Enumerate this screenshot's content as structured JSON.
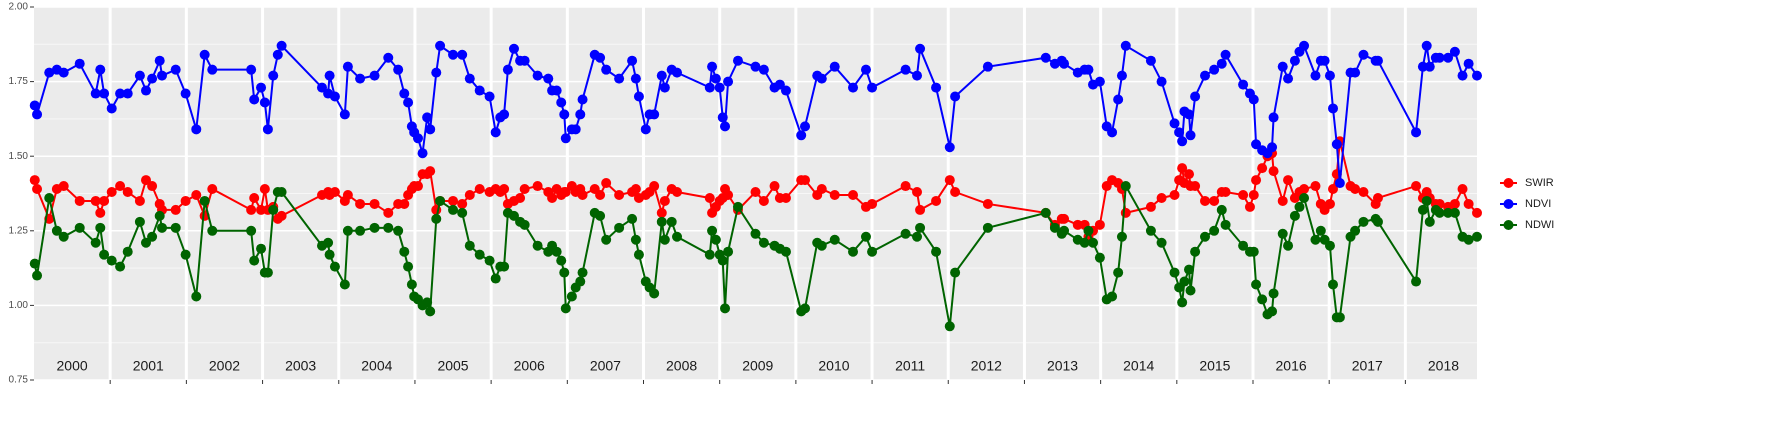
{
  "chart_data": {
    "type": "line",
    "x": [
      2000.01,
      2000.04,
      2000.2,
      2000.3,
      2000.39,
      2000.6,
      2000.81,
      2000.87,
      2000.92,
      2001.02,
      2001.13,
      2001.23,
      2001.39,
      2001.47,
      2001.55,
      2001.65,
      2001.68,
      2001.86,
      2001.99,
      2002.13,
      2002.24,
      2002.34,
      2002.85,
      2002.89,
      2002.98,
      2003.03,
      2003.07,
      2003.14,
      2003.2,
      2003.25,
      2003.78,
      2003.86,
      2003.88,
      2003.95,
      2004.08,
      2004.12,
      2004.28,
      2004.47,
      2004.65,
      2004.78,
      2004.86,
      2004.91,
      2004.96,
      2004.99,
      2005.04,
      2005.1,
      2005.16,
      2005.2,
      2005.28,
      2005.33,
      2005.5,
      2005.62,
      2005.72,
      2005.85,
      2005.98,
      2006.06,
      2006.12,
      2006.17,
      2006.22,
      2006.3,
      2006.38,
      2006.44,
      2006.61,
      2006.75,
      2006.8,
      2006.86,
      2006.92,
      2006.96,
      2006.98,
      2007.06,
      2007.11,
      2007.17,
      2007.2,
      2007.36,
      2007.43,
      2007.51,
      2007.68,
      2007.85,
      2007.9,
      2007.94,
      2008.03,
      2008.08,
      2008.14,
      2008.24,
      2008.28,
      2008.37,
      2008.44,
      2008.87,
      2008.9,
      2008.95,
      2009,
      2009.04,
      2009.07,
      2009.11,
      2009.24,
      2009.47,
      2009.58,
      2009.72,
      2009.79,
      2009.87,
      2010.07,
      2010.12,
      2010.28,
      2010.34,
      2010.51,
      2010.75,
      2010.92,
      2011,
      2011.44,
      2011.59,
      2011.63,
      2011.84,
      2012.02,
      2012.09,
      2012.52,
      2013.28,
      2013.4,
      2013.49,
      2013.52,
      2013.7,
      2013.79,
      2013.84,
      2013.9,
      2013.99,
      2014.08,
      2014.15,
      2014.23,
      2014.28,
      2014.33,
      2014.66,
      2014.8,
      2014.97,
      2015.03,
      2015.07,
      2015.1,
      2015.16,
      2015.18,
      2015.24,
      2015.37,
      2015.49,
      2015.59,
      2015.64,
      2015.87,
      2015.96,
      2016.01,
      2016.04,
      2016.12,
      2016.19,
      2016.25,
      2016.27,
      2016.39,
      2016.46,
      2016.55,
      2016.61,
      2016.67,
      2016.82,
      2016.89,
      2016.94,
      2017.01,
      2017.05,
      2017.1,
      2017.14,
      2017.28,
      2017.34,
      2017.45,
      2017.61,
      2017.64,
      2018.14,
      2018.23,
      2018.28,
      2018.32,
      2018.4,
      2018.45,
      2018.56,
      2018.65,
      2018.75,
      2018.83,
      2018.94
    ],
    "series": [
      {
        "name": "SWIR",
        "color": "#ff0000",
        "values": [
          1.42,
          1.39,
          1.29,
          1.39,
          1.4,
          1.35,
          1.35,
          1.31,
          1.35,
          1.38,
          1.4,
          1.38,
          1.35,
          1.42,
          1.4,
          1.34,
          1.32,
          1.32,
          1.35,
          1.37,
          1.3,
          1.39,
          1.32,
          1.36,
          1.32,
          1.39,
          1.32,
          1.33,
          1.29,
          1.3,
          1.37,
          1.38,
          1.37,
          1.38,
          1.35,
          1.37,
          1.34,
          1.34,
          1.31,
          1.34,
          1.34,
          1.37,
          1.39,
          1.4,
          1.4,
          1.44,
          1.44,
          1.45,
          1.32,
          1.35,
          1.35,
          1.34,
          1.37,
          1.39,
          1.38,
          1.39,
          1.38,
          1.39,
          1.34,
          1.35,
          1.36,
          1.39,
          1.4,
          1.38,
          1.36,
          1.39,
          1.37,
          1.38,
          1.38,
          1.4,
          1.38,
          1.39,
          1.37,
          1.39,
          1.37,
          1.41,
          1.37,
          1.38,
          1.39,
          1.36,
          1.37,
          1.38,
          1.4,
          1.31,
          1.35,
          1.39,
          1.38,
          1.36,
          1.31,
          1.33,
          1.35,
          1.36,
          1.39,
          1.37,
          1.32,
          1.38,
          1.35,
          1.4,
          1.36,
          1.36,
          1.42,
          1.42,
          1.37,
          1.39,
          1.37,
          1.37,
          1.33,
          1.34,
          1.4,
          1.38,
          1.32,
          1.35,
          1.42,
          1.38,
          1.34,
          1.31,
          1.27,
          1.29,
          1.29,
          1.27,
          1.27,
          1.23,
          1.25,
          1.27,
          1.4,
          1.42,
          1.41,
          1.39,
          1.31,
          1.33,
          1.36,
          1.37,
          1.42,
          1.46,
          1.41,
          1.44,
          1.4,
          1.4,
          1.35,
          1.35,
          1.38,
          1.38,
          1.37,
          1.33,
          1.37,
          1.42,
          1.46,
          1.5,
          1.51,
          1.45,
          1.35,
          1.42,
          1.36,
          1.38,
          1.39,
          1.4,
          1.34,
          1.32,
          1.34,
          1.39,
          1.44,
          1.55,
          1.4,
          1.39,
          1.38,
          1.34,
          1.36,
          1.4,
          1.36,
          1.38,
          1.36,
          1.34,
          1.34,
          1.33,
          1.34,
          1.39,
          1.34,
          1.31
        ]
      },
      {
        "name": "NDVI",
        "color": "#0000ff",
        "values": [
          1.67,
          1.64,
          1.78,
          1.79,
          1.78,
          1.81,
          1.71,
          1.79,
          1.71,
          1.66,
          1.71,
          1.71,
          1.77,
          1.72,
          1.76,
          1.82,
          1.77,
          1.79,
          1.71,
          1.59,
          1.84,
          1.79,
          1.79,
          1.69,
          1.73,
          1.68,
          1.59,
          1.77,
          1.84,
          1.87,
          1.73,
          1.71,
          1.77,
          1.7,
          1.64,
          1.8,
          1.76,
          1.77,
          1.83,
          1.79,
          1.71,
          1.68,
          1.6,
          1.58,
          1.56,
          1.51,
          1.63,
          1.59,
          1.78,
          1.87,
          1.84,
          1.84,
          1.76,
          1.72,
          1.7,
          1.58,
          1.63,
          1.64,
          1.79,
          1.86,
          1.82,
          1.82,
          1.77,
          1.76,
          1.72,
          1.72,
          1.68,
          1.64,
          1.56,
          1.59,
          1.59,
          1.64,
          1.69,
          1.84,
          1.83,
          1.79,
          1.76,
          1.82,
          1.76,
          1.7,
          1.59,
          1.64,
          1.64,
          1.77,
          1.73,
          1.79,
          1.78,
          1.73,
          1.8,
          1.76,
          1.73,
          1.63,
          1.6,
          1.75,
          1.82,
          1.8,
          1.79,
          1.73,
          1.74,
          1.72,
          1.57,
          1.6,
          1.77,
          1.76,
          1.8,
          1.73,
          1.79,
          1.73,
          1.79,
          1.77,
          1.86,
          1.73,
          1.53,
          1.7,
          1.8,
          1.83,
          1.81,
          1.82,
          1.81,
          1.78,
          1.79,
          1.79,
          1.74,
          1.75,
          1.6,
          1.58,
          1.69,
          1.77,
          1.87,
          1.82,
          1.75,
          1.61,
          1.58,
          1.55,
          1.65,
          1.64,
          1.57,
          1.7,
          1.77,
          1.79,
          1.81,
          1.84,
          1.74,
          1.71,
          1.69,
          1.54,
          1.52,
          1.51,
          1.53,
          1.63,
          1.8,
          1.76,
          1.82,
          1.85,
          1.87,
          1.77,
          1.82,
          1.82,
          1.77,
          1.66,
          1.54,
          1.41,
          1.78,
          1.78,
          1.84,
          1.82,
          1.82,
          1.58,
          1.8,
          1.87,
          1.8,
          1.83,
          1.83,
          1.83,
          1.85,
          1.77,
          1.81,
          1.77
        ]
      },
      {
        "name": "NDWI",
        "color": "#006400",
        "values": [
          1.14,
          1.1,
          1.36,
          1.25,
          1.23,
          1.26,
          1.21,
          1.26,
          1.17,
          1.15,
          1.13,
          1.18,
          1.28,
          1.21,
          1.23,
          1.3,
          1.26,
          1.26,
          1.17,
          1.03,
          1.35,
          1.25,
          1.25,
          1.15,
          1.19,
          1.11,
          1.11,
          1.32,
          1.38,
          1.38,
          1.2,
          1.21,
          1.17,
          1.13,
          1.07,
          1.25,
          1.25,
          1.26,
          1.26,
          1.25,
          1.18,
          1.13,
          1.07,
          1.03,
          1.02,
          1.0,
          1.01,
          0.98,
          1.29,
          1.35,
          1.32,
          1.31,
          1.2,
          1.17,
          1.15,
          1.09,
          1.13,
          1.13,
          1.31,
          1.3,
          1.28,
          1.27,
          1.2,
          1.18,
          1.2,
          1.18,
          1.15,
          1.11,
          0.99,
          1.03,
          1.06,
          1.08,
          1.11,
          1.31,
          1.3,
          1.22,
          1.26,
          1.29,
          1.22,
          1.17,
          1.08,
          1.06,
          1.04,
          1.28,
          1.22,
          1.28,
          1.23,
          1.17,
          1.25,
          1.22,
          1.17,
          1.15,
          0.99,
          1.18,
          1.33,
          1.24,
          1.21,
          1.2,
          1.19,
          1.18,
          0.98,
          0.99,
          1.21,
          1.2,
          1.22,
          1.18,
          1.23,
          1.18,
          1.24,
          1.23,
          1.26,
          1.18,
          0.93,
          1.11,
          1.26,
          1.31,
          1.26,
          1.24,
          1.25,
          1.22,
          1.21,
          1.25,
          1.21,
          1.16,
          1.02,
          1.03,
          1.11,
          1.23,
          1.4,
          1.25,
          1.21,
          1.11,
          1.06,
          1.01,
          1.08,
          1.12,
          1.05,
          1.18,
          1.23,
          1.25,
          1.32,
          1.27,
          1.2,
          1.18,
          1.18,
          1.07,
          1.02,
          0.97,
          0.98,
          1.04,
          1.24,
          1.2,
          1.3,
          1.33,
          1.36,
          1.22,
          1.25,
          1.22,
          1.2,
          1.07,
          0.96,
          0.96,
          1.23,
          1.25,
          1.28,
          1.29,
          1.28,
          1.08,
          1.32,
          1.35,
          1.28,
          1.32,
          1.31,
          1.31,
          1.31,
          1.23,
          1.22,
          1.23
        ]
      }
    ],
    "xlim": [
      2000,
      2018.94
    ],
    "xticks": [
      {
        "value": 2000.5,
        "label": "2000"
      },
      {
        "value": 2001.5,
        "label": "2001"
      },
      {
        "value": 2002.5,
        "label": "2002"
      },
      {
        "value": 2003.5,
        "label": "2003"
      },
      {
        "value": 2004.5,
        "label": "2004"
      },
      {
        "value": 2005.5,
        "label": "2005"
      },
      {
        "value": 2006.5,
        "label": "2006"
      },
      {
        "value": 2007.5,
        "label": "2007"
      },
      {
        "value": 2008.5,
        "label": "2008"
      },
      {
        "value": 2009.5,
        "label": "2009"
      },
      {
        "value": 2010.5,
        "label": "2010"
      },
      {
        "value": 2011.5,
        "label": "2011"
      },
      {
        "value": 2012.5,
        "label": "2012"
      },
      {
        "value": 2013.5,
        "label": "2013"
      },
      {
        "value": 2014.5,
        "label": "2014"
      },
      {
        "value": 2015.5,
        "label": "2015"
      },
      {
        "value": 2016.5,
        "label": "2016"
      },
      {
        "value": 2017.5,
        "label": "2017"
      },
      {
        "value": 2018.5,
        "label": "2018"
      }
    ],
    "year_breaks": [
      2001,
      2002,
      2003,
      2004,
      2005,
      2006,
      2007,
      2008,
      2009,
      2010,
      2011,
      2012,
      2013,
      2014,
      2015,
      2016,
      2017,
      2018
    ],
    "ylim": [
      0.75,
      2.0
    ],
    "yticks": [
      {
        "value": 0.75,
        "label": "0.75"
      },
      {
        "value": 1,
        "label": "1.00"
      },
      {
        "value": 1.25,
        "label": "1.25"
      },
      {
        "value": 1.5,
        "label": "1.50"
      },
      {
        "value": 1.75,
        "label": "1.75"
      },
      {
        "value": 2,
        "label": "2.00"
      }
    ],
    "grid": true,
    "minor_grid": true,
    "legend": "right"
  }
}
